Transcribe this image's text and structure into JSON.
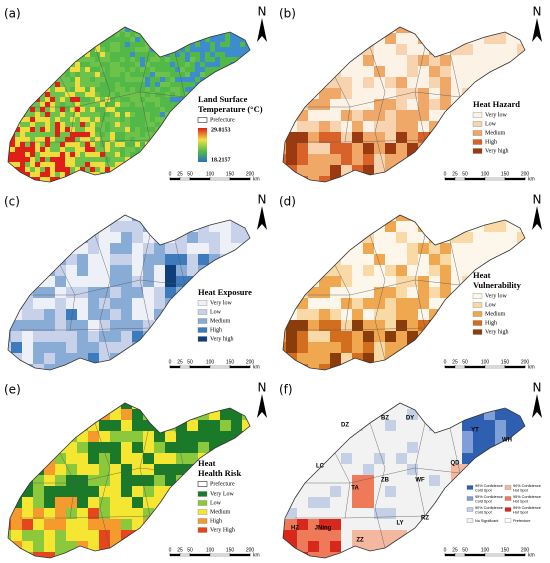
{
  "panels": [
    {
      "label": "(a)",
      "north": "N",
      "legend": {
        "title": [
          "Land Surface",
          "Temperature (°C)"
        ],
        "prefecture": "Prefecture",
        "max": 29.8153,
        "min": 18.2157
      },
      "scale": {
        "ticks": [
          0,
          25,
          50,
          100,
          150,
          200
        ],
        "unit": "km"
      }
    },
    {
      "label": "(b)",
      "north": "N",
      "legend": {
        "title": [
          "Heat Hazard"
        ],
        "items": [
          "Very low",
          "Low",
          "Medium",
          "High",
          "Very high"
        ]
      },
      "scale": {
        "ticks": [
          0,
          25,
          50,
          100,
          150,
          200
        ],
        "unit": "km"
      }
    },
    {
      "label": "(c)",
      "north": "N",
      "legend": {
        "title": [
          "Heat Exposure"
        ],
        "items": [
          "Very low",
          "Low",
          "Medium",
          "High",
          "Very high"
        ]
      },
      "scale": {
        "ticks": [
          0,
          25,
          50,
          100,
          150,
          200
        ],
        "unit": "km"
      }
    },
    {
      "label": "(d)",
      "north": "N",
      "legend": {
        "title": [
          "Heat",
          "Vulnerability"
        ],
        "items": [
          "Very low",
          "Low",
          "Medium",
          "High",
          "Very high"
        ]
      },
      "scale": {
        "ticks": [
          0,
          25,
          50,
          100,
          150,
          200
        ],
        "unit": "km"
      }
    },
    {
      "label": "(e)",
      "north": "N",
      "legend": {
        "title": [
          "Heat",
          "Health Risk"
        ],
        "prefecture": "Prefecture",
        "items": [
          "Very Low",
          "Low",
          "Medium",
          "High",
          "Very High"
        ]
      },
      "scale": {
        "ticks": [
          0,
          25,
          50,
          100,
          150,
          200
        ],
        "unit": "km"
      }
    },
    {
      "label": "(f)",
      "north": "N",
      "cities": [
        "DZ",
        "BZ",
        "DY",
        "YT",
        "WH",
        "LC",
        "ZB",
        "WF",
        "QD",
        "TA",
        "JNing",
        "LY",
        "RZ",
        "HZ",
        "ZZ"
      ],
      "legend": {
        "items": [
          [
            "99% Confidence",
            "Cold Spot"
          ],
          [
            "95% Confidence",
            "Cold Spot"
          ],
          [
            "90% Confidence",
            "Cold Spot"
          ],
          [
            "No Significant"
          ],
          [
            "90% Confidence",
            "Hot Spot"
          ],
          [
            "95% Confidence",
            "Hot Spot"
          ],
          [
            "99% Confidence",
            "Hot Spot"
          ],
          [
            "Prefecture"
          ]
        ]
      },
      "scale": {
        "ticks": [
          0,
          25,
          50,
          100,
          150,
          200
        ],
        "unit": "km"
      }
    }
  ]
}
